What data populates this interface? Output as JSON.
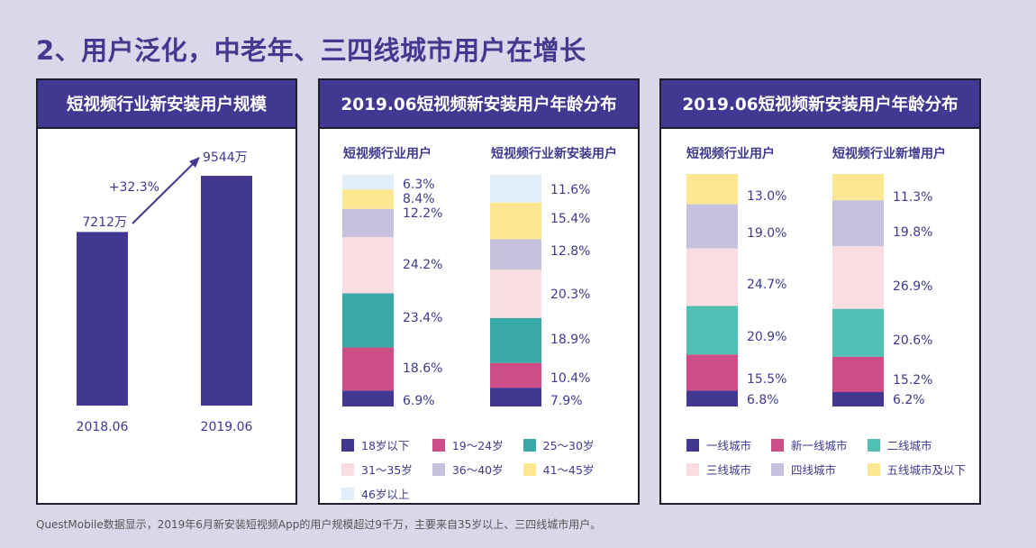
{
  "page": {
    "title": "2、用户泛化，中老年、三四线城市用户在增长",
    "footnote": "QuestMobile数据显示，2019年6月新安装短视频App的用户规模超过9千万，主要来自35岁以上、三四线城市用户。"
  },
  "colors": {
    "accent": "#433891",
    "c1": "#433891",
    "c2": "#cd4d87",
    "c3_age": "#3aaaa9",
    "c3_city": "#52bfb5",
    "c4": "#fadde3",
    "c5": "#c6c2de",
    "c6": "#fee792",
    "c7": "#e1eef9"
  },
  "chart_data": [
    {
      "type": "bar",
      "title": "短视频行业新安装用户规模",
      "categories": [
        "2018.06",
        "2019.06"
      ],
      "values": [
        7212,
        9544
      ],
      "unit": "万",
      "data_labels": [
        "7212万",
        "9544万"
      ],
      "annotations": [
        {
          "text": "+32.3%",
          "kind": "growth-arrow"
        }
      ],
      "ylim": [
        0,
        10000
      ]
    },
    {
      "type": "bar",
      "stacked": true,
      "normalized": true,
      "title": "2019.06短视频新安装用户年龄分布",
      "categories": [
        "短视频行业用户",
        "短视频行业新安装用户"
      ],
      "series": [
        {
          "name": "18岁以下",
          "color": "#433891",
          "values": [
            6.9,
            7.9
          ]
        },
        {
          "name": "19～24岁",
          "color": "#cd4d87",
          "values": [
            18.6,
            10.4
          ]
        },
        {
          "name": "25～30岁",
          "color": "#3aaaa9",
          "values": [
            23.4,
            18.9
          ]
        },
        {
          "name": "31～35岁",
          "color": "#fadde3",
          "values": [
            24.2,
            20.3
          ]
        },
        {
          "name": "36～40岁",
          "color": "#c6c2de",
          "values": [
            12.2,
            12.8
          ]
        },
        {
          "name": "41～45岁",
          "color": "#fee792",
          "values": [
            8.4,
            15.4
          ]
        },
        {
          "name": "46岁以上",
          "color": "#e1eef9",
          "values": [
            6.3,
            11.6
          ]
        }
      ],
      "labels": [
        [
          "6.9%",
          "18.6%",
          "23.4%",
          "24.2%",
          "12.2%",
          "8.4%",
          "6.3%"
        ],
        [
          "7.9%",
          "10.4%",
          "18.9%",
          "20.3%",
          "12.8%",
          "15.4%",
          "11.6%"
        ]
      ],
      "legend": {
        "position": "bottom",
        "items": [
          "18岁以下",
          "19～24岁",
          "25～30岁",
          "31～35岁",
          "36～40岁",
          "41～45岁",
          "46岁以上"
        ]
      }
    },
    {
      "type": "bar",
      "stacked": true,
      "normalized": true,
      "title": "2019.06短视频新安装用户年龄分布",
      "categories": [
        "短视频行业用户",
        "短视频行业新增用户"
      ],
      "series": [
        {
          "name": "一线城市",
          "color": "#433891",
          "values": [
            6.8,
            6.2
          ]
        },
        {
          "name": "新一线城市",
          "color": "#cd4d87",
          "values": [
            15.5,
            15.2
          ]
        },
        {
          "name": "二线城市",
          "color": "#52bfb5",
          "values": [
            20.9,
            20.6
          ]
        },
        {
          "name": "三线城市",
          "color": "#fadde3",
          "values": [
            24.7,
            26.9
          ]
        },
        {
          "name": "四线城市",
          "color": "#c6c2de",
          "values": [
            19.0,
            19.8
          ]
        },
        {
          "name": "五线城市及以下",
          "color": "#fee792",
          "values": [
            13.0,
            11.3
          ]
        }
      ],
      "labels": [
        [
          "6.8%",
          "15.5%",
          "20.9%",
          "24.7%",
          "19.0%",
          "13.0%"
        ],
        [
          "6.2%",
          "15.2%",
          "20.6%",
          "26.9%",
          "19.8%",
          "11.3%"
        ]
      ],
      "legend": {
        "position": "bottom",
        "items": [
          "一线城市",
          "新一线城市",
          "二线城市",
          "三线城市",
          "四线城市",
          "五线城市及以下"
        ]
      }
    }
  ]
}
